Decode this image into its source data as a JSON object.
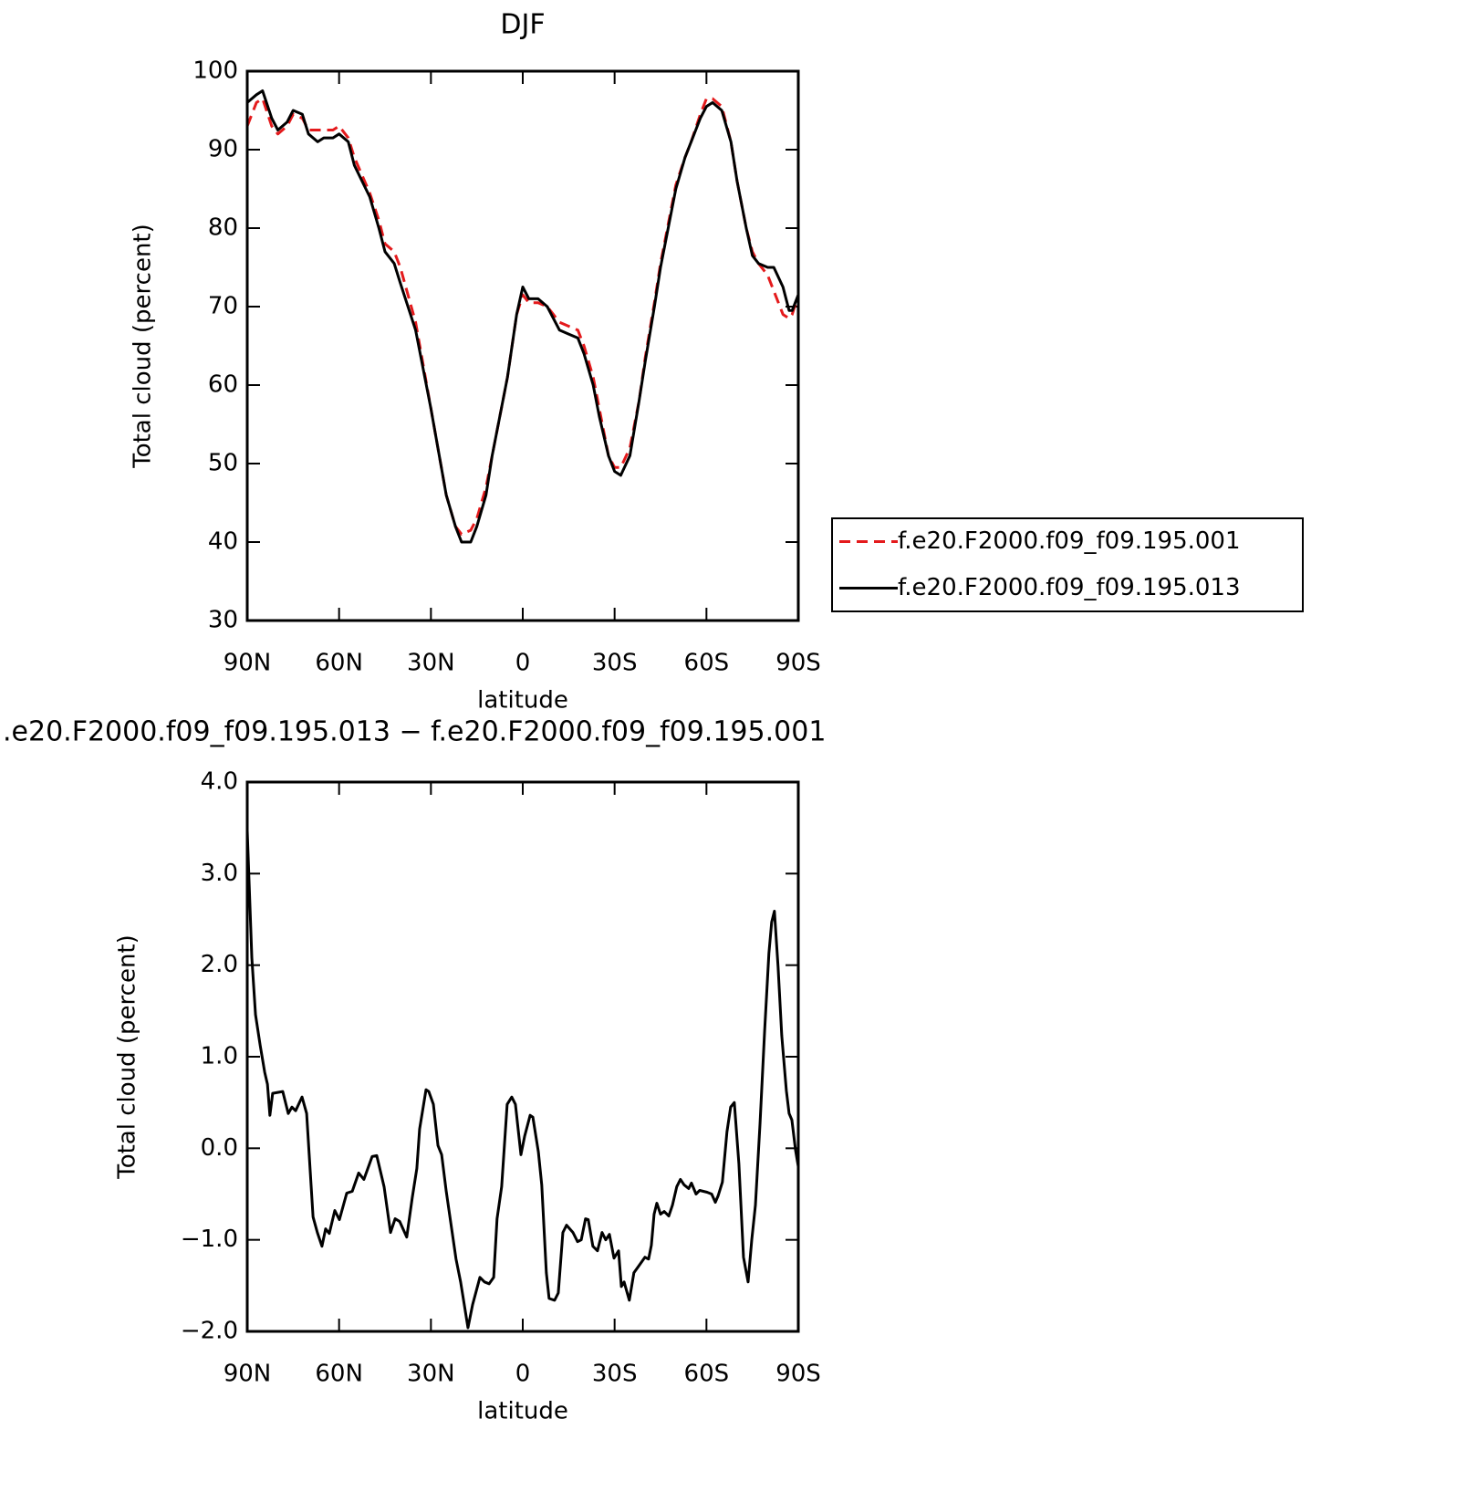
{
  "chart_data": [
    {
      "type": "line",
      "title": "DJF",
      "xlabel": "latitude",
      "ylabel": "Total cloud (percent)",
      "xlim": [
        90,
        -90
      ],
      "xticks": [
        {
          "value": 90,
          "label": "90N"
        },
        {
          "value": 60,
          "label": "60N"
        },
        {
          "value": 30,
          "label": "30N"
        },
        0,
        {
          "value": -30,
          "label": "30S"
        },
        {
          "value": -60,
          "label": "60S"
        },
        {
          "value": -90,
          "label": "90S"
        }
      ],
      "ylim": [
        30,
        100
      ],
      "yticks": [
        30,
        40,
        50,
        60,
        70,
        80,
        90,
        100
      ],
      "legend_position": "right",
      "x": [
        90,
        87,
        85,
        82,
        80,
        77,
        75,
        72,
        70,
        67,
        65,
        62,
        60,
        57,
        55,
        50,
        47,
        45,
        42,
        40,
        35,
        30,
        25,
        22,
        20,
        17,
        15,
        12,
        10,
        5,
        2,
        0,
        -2,
        -5,
        -8,
        -10,
        -12,
        -15,
        -18,
        -20,
        -23,
        -25,
        -28,
        -30,
        -32,
        -35,
        -38,
        -40,
        -43,
        -45,
        -48,
        -50,
        -53,
        -55,
        -58,
        -60,
        -62,
        -65,
        -68,
        -70,
        -73,
        -75,
        -77,
        -80,
        -82,
        -85,
        -87,
        -88,
        -90
      ],
      "series": [
        {
          "name": "f.e20.F2000.f09_f09.195.001",
          "color": "#e41a1c",
          "style": "dashed",
          "values": [
            93,
            96,
            96.5,
            93,
            92,
            93,
            94.5,
            94,
            92.5,
            92.5,
            92.5,
            92.5,
            93,
            91.5,
            89,
            84.5,
            81,
            78,
            77,
            75,
            68,
            57,
            46,
            42,
            41,
            41.5,
            43,
            47,
            51,
            61,
            69,
            71.5,
            70.5,
            70.5,
            70,
            69,
            68,
            67.5,
            67,
            65,
            61,
            57,
            51,
            49.5,
            49.5,
            52,
            58,
            63.5,
            70.5,
            75.5,
            81.5,
            85.5,
            89,
            91,
            94.5,
            96.5,
            96.5,
            95.5,
            91,
            86,
            80,
            77,
            75.5,
            74,
            72,
            69,
            68.5,
            69,
            71.5
          ]
        },
        {
          "name": "f.e20.F2000.f09_f09.195.013",
          "color": "#000000",
          "style": "solid",
          "values": [
            96,
            97,
            97.5,
            94,
            92.5,
            93.5,
            95,
            94.5,
            92,
            91,
            91.5,
            91.5,
            92,
            91,
            88,
            84,
            80,
            77,
            75.5,
            73,
            67,
            57,
            46,
            42,
            40,
            40,
            42,
            46,
            51,
            61,
            69,
            72.5,
            71,
            71,
            70,
            68.5,
            67,
            66.5,
            66,
            64,
            60,
            56,
            51,
            49,
            48.5,
            51,
            58,
            63,
            70,
            75,
            81,
            85,
            89,
            91,
            94,
            95.5,
            96,
            95,
            91,
            86,
            80,
            76.5,
            75.5,
            75,
            75,
            72.5,
            69.5,
            69.5,
            71.5
          ]
        }
      ]
    },
    {
      "type": "line",
      "title": ".e20.F2000.f09_f09.195.013 − f.e20.F2000.f09_f09.195.001",
      "xlabel": "latitude",
      "ylabel": "Total cloud (percent)",
      "xlim": [
        90,
        -90
      ],
      "xticks": [
        {
          "value": 90,
          "label": "90N"
        },
        {
          "value": 60,
          "label": "60N"
        },
        {
          "value": 30,
          "label": "30N"
        },
        0,
        {
          "value": -30,
          "label": "30S"
        },
        {
          "value": -60,
          "label": "60S"
        },
        {
          "value": -90,
          "label": "90S"
        }
      ],
      "ylim": [
        -2,
        4
      ],
      "yticks": [
        {
          "value": -2,
          "label": "−2.0"
        },
        {
          "value": -1,
          "label": "−1.0"
        },
        {
          "value": 0,
          "label": "0.0"
        },
        {
          "value": 1,
          "label": "1.0"
        },
        {
          "value": 2,
          "label": "2.0"
        },
        {
          "value": 3,
          "label": "3.0"
        },
        {
          "value": 4,
          "label": "4.0"
        }
      ],
      "x": [
        90,
        88.5,
        87.3,
        85.8,
        84.3,
        83.4,
        82.6,
        81.7,
        78.4,
        76.6,
        75.4,
        74.2,
        72.1,
        70.6,
        68.5,
        67.1,
        65.6,
        64.4,
        63.2,
        61.4,
        59.9,
        57.5,
        55.7,
        53.6,
        51.9,
        49.2,
        47.7,
        45.3,
        43.2,
        41.7,
        40.2,
        37.9,
        36.1,
        34.6,
        33.7,
        31.6,
        30.7,
        29.2,
        27.7,
        26.5,
        25,
        21.8,
        20.3,
        17.9,
        16.4,
        14,
        12.5,
        11,
        9.5,
        8.4,
        6.9,
        5.1,
        3.6,
        2.4,
        0.6,
        -0.6,
        -2.4,
        -3.3,
        -5.1,
        -6.2,
        -7.7,
        -8.6,
        -10.4,
        -11.6,
        -13.1,
        -14.3,
        -16.4,
        -17.9,
        -19.1,
        -20.5,
        -21.4,
        -22.9,
        -24.4,
        -25.9,
        -27.1,
        -28.3,
        -29.8,
        -31.3,
        -32.2,
        -33.1,
        -34.8,
        -36.3,
        -37.8,
        -39.9,
        -41.1,
        -42,
        -42.9,
        -43.8,
        -45,
        -46.2,
        -47.7,
        -48.9,
        -50.3,
        -51.5,
        -52.7,
        -54.2,
        -55.1,
        -56.6,
        -57.8,
        -60.2,
        -61.7,
        -62.9,
        -63.8,
        -65.2,
        -66.7,
        -67.9,
        -69.1,
        -70.6,
        -72.1,
        -73.6,
        -74.8,
        -76,
        -77.5,
        -79,
        -80.4,
        -81.3,
        -82.2,
        -83.4,
        -84.6,
        -86.1,
        -87,
        -87.9,
        -89.1,
        -90
      ],
      "series": [
        {
          "color": "#000000",
          "style": "solid",
          "values": [
            3.47,
            2.08,
            1.46,
            1.13,
            0.83,
            0.7,
            0.36,
            0.6,
            0.62,
            0.38,
            0.45,
            0.41,
            0.56,
            0.38,
            -0.75,
            -0.92,
            -1.07,
            -0.88,
            -0.93,
            -0.68,
            -0.78,
            -0.49,
            -0.47,
            -0.27,
            -0.34,
            -0.09,
            -0.08,
            -0.42,
            -0.92,
            -0.77,
            -0.8,
            -0.97,
            -0.54,
            -0.22,
            0.21,
            0.64,
            0.62,
            0.48,
            0.03,
            -0.07,
            -0.47,
            -1.21,
            -1.46,
            -1.96,
            -1.71,
            -1.41,
            -1.46,
            -1.48,
            -1.41,
            -0.77,
            -0.42,
            0.48,
            0.56,
            0.48,
            -0.07,
            0.13,
            0.36,
            0.34,
            -0.04,
            -0.4,
            -1.36,
            -1.64,
            -1.66,
            -1.58,
            -0.92,
            -0.84,
            -0.92,
            -1.02,
            -1,
            -0.77,
            -0.78,
            -1.07,
            -1.12,
            -0.92,
            -1,
            -0.94,
            -1.2,
            -1.12,
            -1.51,
            -1.46,
            -1.66,
            -1.36,
            -1.29,
            -1.19,
            -1.21,
            -1.06,
            -0.72,
            -0.6,
            -0.72,
            -0.69,
            -0.74,
            -0.62,
            -0.42,
            -0.34,
            -0.4,
            -0.44,
            -0.38,
            -0.5,
            -0.46,
            -0.48,
            -0.5,
            -0.59,
            -0.52,
            -0.37,
            0.18,
            0.45,
            0.5,
            -0.17,
            -1.19,
            -1.46,
            -1,
            -0.62,
            0.27,
            1.28,
            2.13,
            2.47,
            2.59,
            1.98,
            1.23,
            0.63,
            0.38,
            0.31,
            -0.02,
            -0.2
          ]
        }
      ]
    }
  ]
}
